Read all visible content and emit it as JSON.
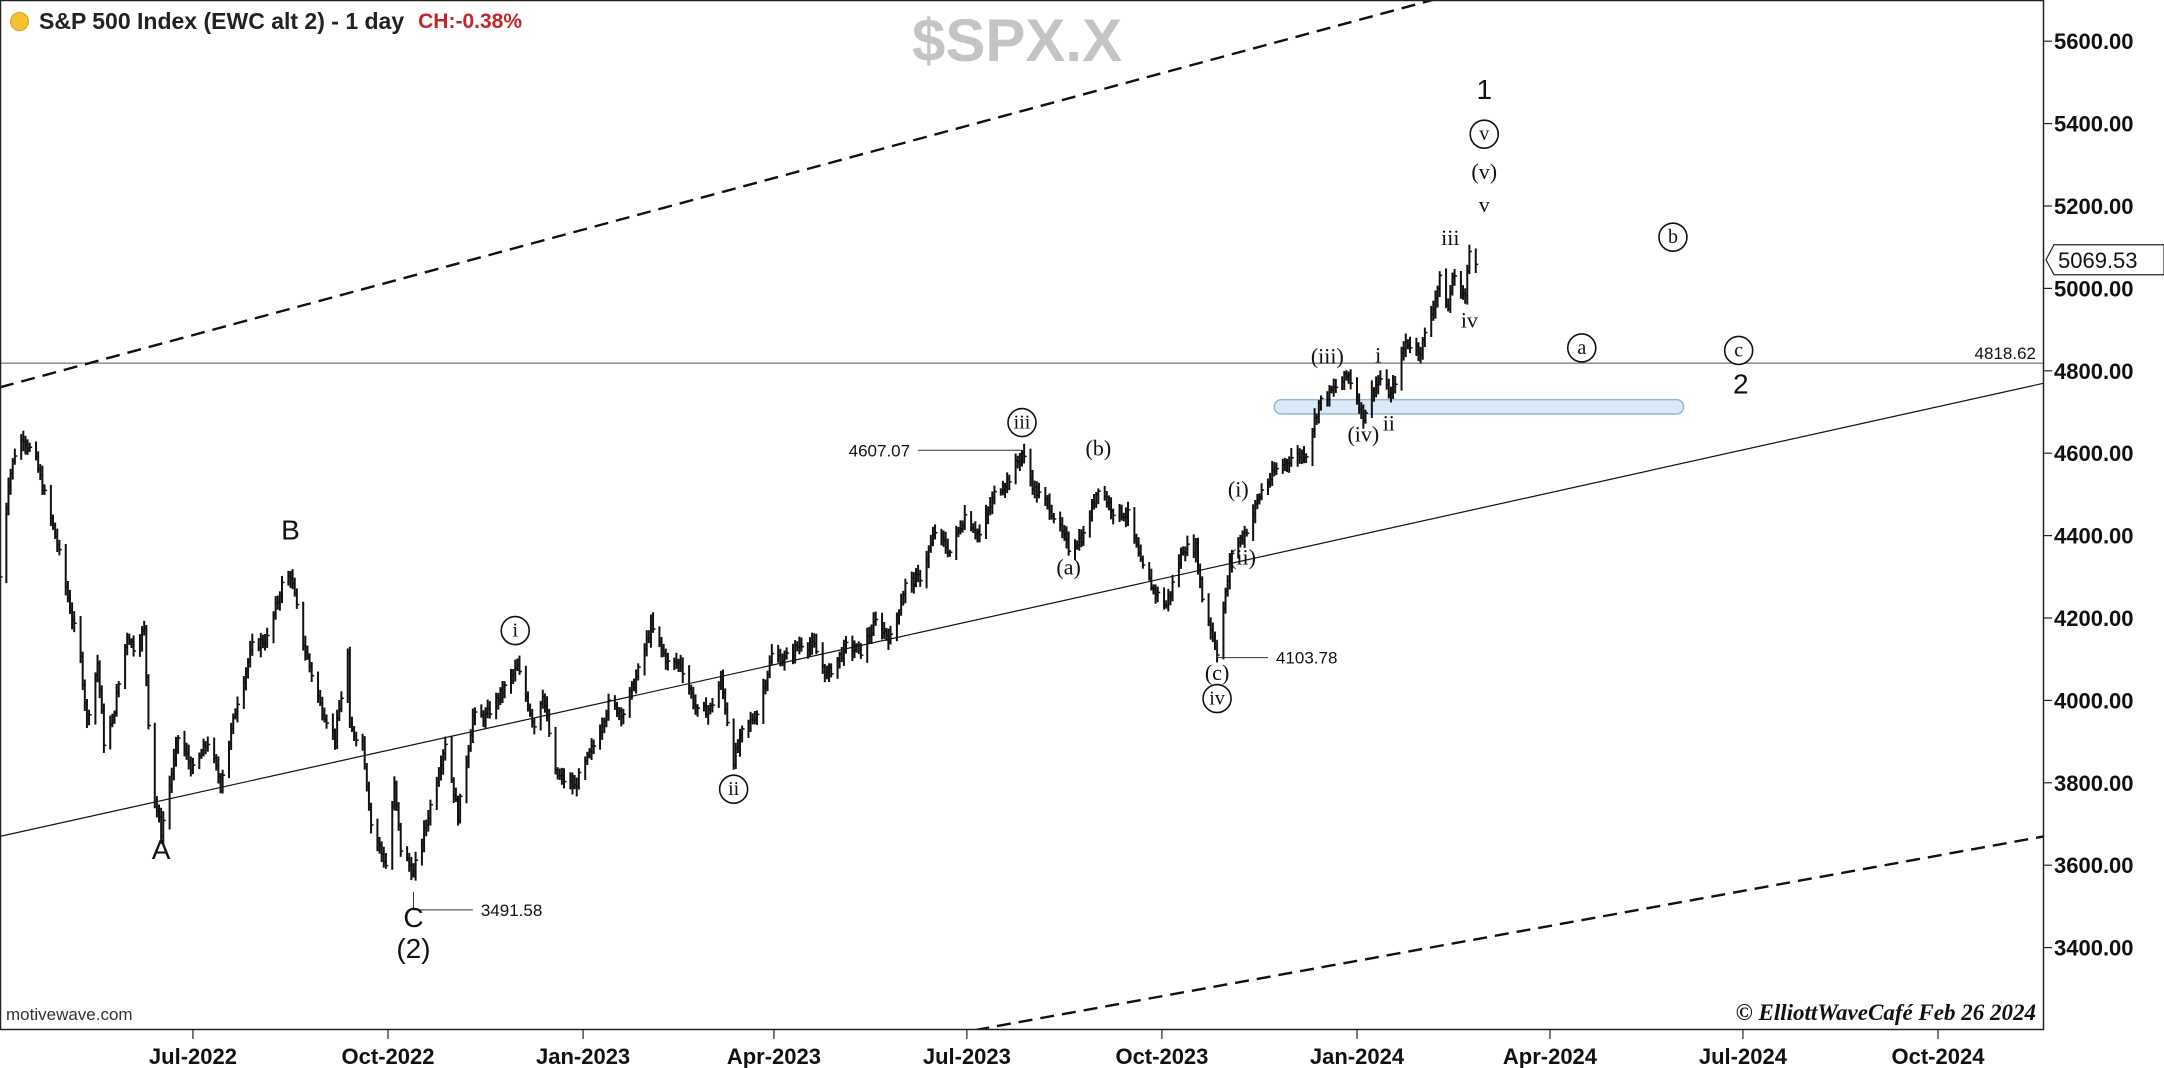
{
  "header": {
    "title": "S&P 500 Index (EWC alt 2) - 1 day",
    "change": "CH:-0.38%"
  },
  "watermark": "$SPX.X",
  "brand": "motivewave.com",
  "copyright": "© ElliottWaveCafé Feb 26 2024",
  "colors": {
    "ch_text": "#c0272d",
    "status_dot": "#f5c12e",
    "zone_fill": "#dbe9f6",
    "zone_stroke": "#9ab6d3"
  },
  "chart_data": {
    "type": "bar",
    "ylim": [
      3200,
      5700
    ],
    "ytick_values": [
      3400,
      3600,
      3800,
      4000,
      4200,
      4400,
      4600,
      4800,
      5000,
      5200,
      5400,
      5600
    ],
    "ytick_labels": [
      "3400.00",
      "3600.00",
      "3800.00",
      "4000.00",
      "4200.00",
      "4400.00",
      "4600.00",
      "4800.00",
      "5000.00",
      "5200.00",
      "5400.00",
      "5600.00"
    ],
    "xlim": [
      "2022-04-01",
      "2024-11-20"
    ],
    "xticks": [
      {
        "date": "2022-07-01",
        "label": "Jul-2022"
      },
      {
        "date": "2022-10-01",
        "label": "Oct-2022"
      },
      {
        "date": "2023-01-01",
        "label": "Jan-2023"
      },
      {
        "date": "2023-04-01",
        "label": "Apr-2023"
      },
      {
        "date": "2023-07-01",
        "label": "Jul-2023"
      },
      {
        "date": "2023-10-01",
        "label": "Oct-2023"
      },
      {
        "date": "2024-01-01",
        "label": "Jan-2024"
      },
      {
        "date": "2024-04-01",
        "label": "Apr-2024"
      },
      {
        "date": "2024-07-01",
        "label": "Jul-2024"
      },
      {
        "date": "2024-10-01",
        "label": "Oct-2024"
      }
    ],
    "last_price": {
      "value": 5069.53,
      "label": "5069.53"
    },
    "hline": {
      "value": 4818.62,
      "label": "4818.62"
    },
    "price_path": [
      [
        "2022-04-01",
        4300
      ],
      [
        "2022-04-05",
        4530
      ],
      [
        "2022-04-08",
        4600
      ],
      [
        "2022-04-12",
        4640
      ],
      [
        "2022-04-18",
        4580
      ],
      [
        "2022-04-22",
        4500
      ],
      [
        "2022-04-28",
        4380
      ],
      [
        "2022-05-03",
        4250
      ],
      [
        "2022-05-09",
        4100
      ],
      [
        "2022-05-12",
        3950
      ],
      [
        "2022-05-17",
        4090
      ],
      [
        "2022-05-20",
        3900
      ],
      [
        "2022-05-24",
        3950
      ],
      [
        "2022-05-31",
        4160
      ],
      [
        "2022-06-03",
        4130
      ],
      [
        "2022-06-08",
        4170
      ],
      [
        "2022-06-10",
        3950
      ],
      [
        "2022-06-13",
        3760
      ],
      [
        "2022-06-16",
        3680
      ],
      [
        "2022-06-24",
        3910
      ],
      [
        "2022-07-01",
        3830
      ],
      [
        "2022-07-08",
        3900
      ],
      [
        "2022-07-14",
        3800
      ],
      [
        "2022-07-22",
        4000
      ],
      [
        "2022-07-29",
        4130
      ],
      [
        "2022-08-05",
        4150
      ],
      [
        "2022-08-12",
        4280
      ],
      [
        "2022-08-16",
        4305
      ],
      [
        "2022-08-22",
        4140
      ],
      [
        "2022-08-30",
        3990
      ],
      [
        "2022-09-06",
        3910
      ],
      [
        "2022-09-12",
        4110
      ],
      [
        "2022-09-13",
        3930
      ],
      [
        "2022-09-19",
        3900
      ],
      [
        "2022-09-23",
        3700
      ],
      [
        "2022-09-30",
        3600
      ],
      [
        "2022-10-04",
        3790
      ],
      [
        "2022-10-07",
        3640
      ],
      [
        "2022-10-13",
        3580
      ],
      [
        "2022-10-19",
        3700
      ],
      [
        "2022-10-28",
        3900
      ],
      [
        "2022-11-03",
        3720
      ],
      [
        "2022-11-10",
        3960
      ],
      [
        "2022-11-16",
        3960
      ],
      [
        "2022-11-25",
        4030
      ],
      [
        "2022-12-01",
        4080
      ],
      [
        "2022-12-09",
        3940
      ],
      [
        "2022-12-13",
        4020
      ],
      [
        "2022-12-19",
        3820
      ],
      [
        "2022-12-28",
        3790
      ],
      [
        "2023-01-06",
        3890
      ],
      [
        "2023-01-13",
        3990
      ],
      [
        "2023-01-20",
        3970
      ],
      [
        "2023-01-27",
        4070
      ],
      [
        "2023-02-02",
        4180
      ],
      [
        "2023-02-10",
        4090
      ],
      [
        "2023-02-16",
        4090
      ],
      [
        "2023-02-24",
        3970
      ],
      [
        "2023-03-02",
        3980
      ],
      [
        "2023-03-07",
        4050
      ],
      [
        "2023-03-13",
        3855
      ],
      [
        "2023-03-17",
        3920
      ],
      [
        "2023-03-24",
        3970
      ],
      [
        "2023-03-31",
        4110
      ],
      [
        "2023-04-06",
        4100
      ],
      [
        "2023-04-14",
        4140
      ],
      [
        "2023-04-20",
        4130
      ],
      [
        "2023-04-26",
        4060
      ],
      [
        "2023-05-05",
        4130
      ],
      [
        "2023-05-12",
        4120
      ],
      [
        "2023-05-19",
        4190
      ],
      [
        "2023-05-26",
        4150
      ],
      [
        "2023-06-02",
        4280
      ],
      [
        "2023-06-09",
        4300
      ],
      [
        "2023-06-16",
        4410
      ],
      [
        "2023-06-23",
        4360
      ],
      [
        "2023-06-30",
        4450
      ],
      [
        "2023-07-07",
        4400
      ],
      [
        "2023-07-14",
        4500
      ],
      [
        "2023-07-21",
        4540
      ],
      [
        "2023-07-27",
        4600
      ],
      [
        "2023-08-02",
        4510
      ],
      [
        "2023-08-09",
        4470
      ],
      [
        "2023-08-18",
        4370
      ],
      [
        "2023-08-25",
        4400
      ],
      [
        "2023-09-01",
        4520
      ],
      [
        "2023-09-08",
        4460
      ],
      [
        "2023-09-15",
        4450
      ],
      [
        "2023-09-21",
        4330
      ],
      [
        "2023-09-27",
        4270
      ],
      [
        "2023-10-03",
        4230
      ],
      [
        "2023-10-11",
        4370
      ],
      [
        "2023-10-17",
        4370
      ],
      [
        "2023-10-20",
        4250
      ],
      [
        "2023-10-27",
        4120
      ],
      [
        "2023-11-03",
        4360
      ],
      [
        "2023-11-10",
        4415
      ],
      [
        "2023-11-17",
        4510
      ],
      [
        "2023-11-24",
        4560
      ],
      [
        "2023-12-01",
        4590
      ],
      [
        "2023-12-08",
        4600
      ],
      [
        "2023-12-14",
        4720
      ],
      [
        "2023-12-22",
        4760
      ],
      [
        "2023-12-28",
        4790
      ],
      [
        "2024-01-04",
        4690
      ],
      [
        "2024-01-09",
        4760
      ],
      [
        "2024-01-12",
        4780
      ],
      [
        "2024-01-17",
        4740
      ],
      [
        "2024-01-24",
        4870
      ],
      [
        "2024-01-31",
        4850
      ],
      [
        "2024-02-05",
        4940
      ],
      [
        "2024-02-09",
        5020
      ],
      [
        "2024-02-13",
        4950
      ],
      [
        "2024-02-15",
        5030
      ],
      [
        "2024-02-21",
        4980
      ],
      [
        "2024-02-23",
        5090
      ],
      [
        "2024-02-26",
        5069
      ]
    ],
    "lines": [
      {
        "name": "upper-channel",
        "dashed": true,
        "p1": [
          "2022-04-01",
          4760
        ],
        "p2": [
          "2024-02-20",
          5720
        ]
      },
      {
        "name": "lower-channel",
        "dashed": true,
        "p1": [
          "2023-07-05",
          3200
        ],
        "p2": [
          "2024-11-20",
          3670
        ]
      },
      {
        "name": "middle-trend",
        "dashed": false,
        "p1": [
          "2022-04-01",
          3670
        ],
        "p2": [
          "2024-11-20",
          4770
        ]
      }
    ],
    "zone": {
      "x1": "2023-11-23",
      "x2": "2024-06-03",
      "y1": 4695,
      "y2": 4730
    },
    "price_callouts": [
      {
        "label": "3491.58",
        "value": 3491.58,
        "date": "2022-10-13",
        "side": "right",
        "text_date": "2022-11-10"
      },
      {
        "label": "4607.07",
        "value": 4607.07,
        "date": "2023-07-27",
        "side": "left",
        "text_date": "2023-06-08"
      },
      {
        "label": "4103.78",
        "value": 4103.78,
        "date": "2023-10-27",
        "side": "right",
        "text_date": "2023-11-20"
      }
    ],
    "wave_labels": [
      {
        "text": "A",
        "date": "2022-06-16",
        "y": 3615,
        "style": "sans"
      },
      {
        "text": "B",
        "date": "2022-08-16",
        "y": 4390,
        "style": "sans"
      },
      {
        "text": "C",
        "date": "2022-10-13",
        "y": 3450,
        "style": "sans"
      },
      {
        "text": "(2)",
        "date": "2022-10-13",
        "y": 3375,
        "style": "sans"
      },
      {
        "text": "i",
        "date": "2022-11-30",
        "y": 4150,
        "style": "circle"
      },
      {
        "text": "ii",
        "date": "2023-03-13",
        "y": 3765,
        "style": "circle"
      },
      {
        "text": "iii",
        "date": "2023-07-27",
        "y": 4655,
        "style": "circle"
      },
      {
        "text": "(a)",
        "date": "2023-08-18",
        "y": 4305,
        "style": "serif"
      },
      {
        "text": "(b)",
        "date": "2023-09-01",
        "y": 4595,
        "style": "serif"
      },
      {
        "text": "(c)",
        "date": "2023-10-27",
        "y": 4050,
        "style": "serif"
      },
      {
        "text": "iv",
        "date": "2023-10-27",
        "y": 3985,
        "style": "circle"
      },
      {
        "text": "(i)",
        "date": "2023-11-06",
        "y": 4495,
        "style": "serif"
      },
      {
        "text": "(ii)",
        "date": "2023-11-08",
        "y": 4330,
        "style": "serif"
      },
      {
        "text": "(iii)",
        "date": "2023-12-18",
        "y": 4818,
        "style": "serif"
      },
      {
        "text": "(iv)",
        "date": "2024-01-04",
        "y": 4628,
        "style": "serif"
      },
      {
        "text": "i",
        "date": "2024-01-11",
        "y": 4820,
        "style": "serif"
      },
      {
        "text": "ii",
        "date": "2024-01-16",
        "y": 4655,
        "style": "serif"
      },
      {
        "text": "iii",
        "date": "2024-02-14",
        "y": 5105,
        "style": "serif"
      },
      {
        "text": "iv",
        "date": "2024-02-23",
        "y": 4905,
        "style": "serif"
      },
      {
        "text": "v",
        "date": "2024-03-01",
        "y": 5185,
        "style": "serif"
      },
      {
        "text": "(v)",
        "date": "2024-03-01",
        "y": 5265,
        "style": "serif"
      },
      {
        "text": "v",
        "date": "2024-03-01",
        "y": 5355,
        "style": "circle"
      },
      {
        "text": "1",
        "date": "2024-03-01",
        "y": 5460,
        "style": "sans"
      },
      {
        "text": "a",
        "date": "2024-04-16",
        "y": 4836,
        "style": "circle"
      },
      {
        "text": "b",
        "date": "2024-05-29",
        "y": 5105,
        "style": "circle"
      },
      {
        "text": "c",
        "date": "2024-06-29",
        "y": 4830,
        "style": "circle"
      },
      {
        "text": "2",
        "date": "2024-06-30",
        "y": 4745,
        "style": "sans"
      }
    ]
  }
}
